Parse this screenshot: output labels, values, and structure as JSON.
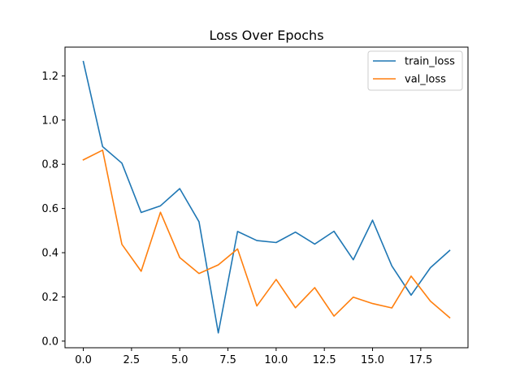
{
  "chart_data": {
    "type": "line",
    "title": "Loss Over Epochs",
    "xlabel": "",
    "ylabel": "",
    "x": [
      0,
      1,
      2,
      3,
      4,
      5,
      6,
      7,
      8,
      9,
      10,
      11,
      12,
      13,
      14,
      15,
      16,
      17,
      18,
      19
    ],
    "xlim": [
      -0.95,
      19.95
    ],
    "ylim": [
      -0.03,
      1.33
    ],
    "xticks": [
      0,
      2.5,
      5,
      7.5,
      10,
      12.5,
      15,
      17.5
    ],
    "xtick_labels": [
      "0.0",
      "2.5",
      "5.0",
      "7.5",
      "10.0",
      "12.5",
      "15.0",
      "17.5"
    ],
    "yticks": [
      0,
      0.2,
      0.4,
      0.6,
      0.8,
      1.0,
      1.2
    ],
    "ytick_labels": [
      "0.0",
      "0.2",
      "0.4",
      "0.6",
      "0.8",
      "1.0",
      "1.2"
    ],
    "grid": false,
    "legend_position": "top-right",
    "series": [
      {
        "name": "train_loss",
        "color": "#1f77b4",
        "values": [
          1.265,
          0.88,
          0.805,
          0.582,
          0.612,
          0.69,
          0.54,
          0.037,
          0.496,
          0.455,
          0.446,
          0.493,
          0.439,
          0.497,
          0.368,
          0.547,
          0.34,
          0.208,
          0.332,
          0.41
        ]
      },
      {
        "name": "val_loss",
        "color": "#ff7f0e",
        "values": [
          0.82,
          0.864,
          0.438,
          0.316,
          0.583,
          0.378,
          0.306,
          0.345,
          0.417,
          0.159,
          0.279,
          0.151,
          0.242,
          0.113,
          0.199,
          0.17,
          0.15,
          0.294,
          0.181,
          0.106
        ]
      }
    ]
  }
}
